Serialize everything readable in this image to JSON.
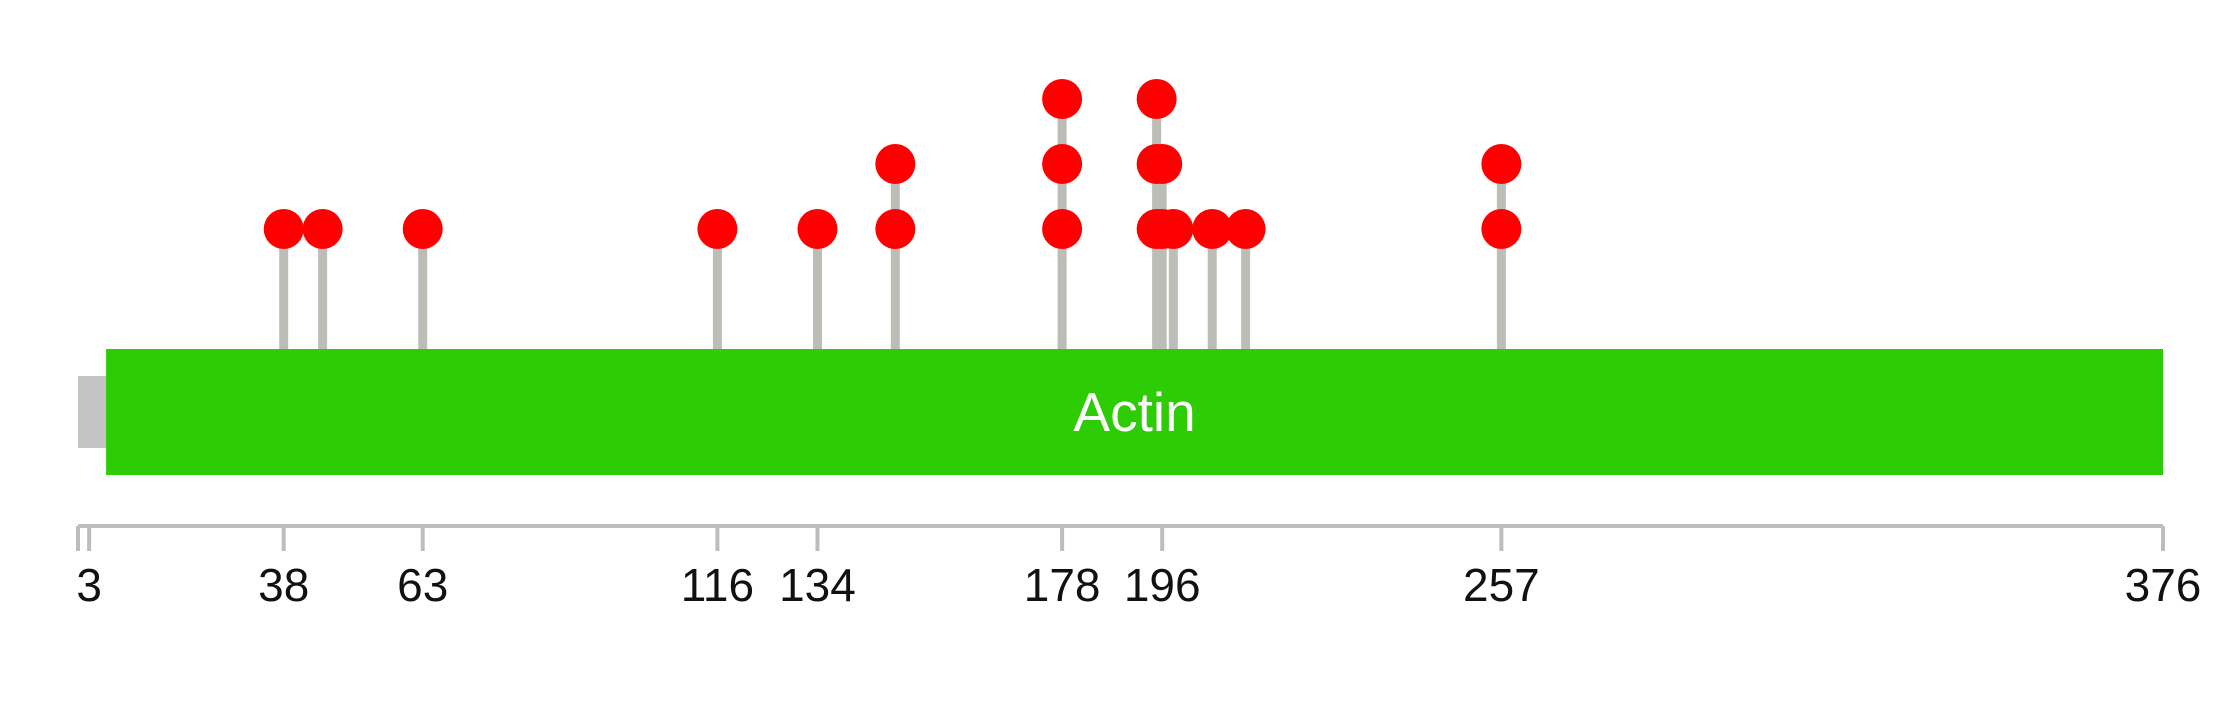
{
  "chart_data": {
    "type": "lollipop",
    "title": "",
    "protein_range": [
      1,
      376
    ],
    "domain": {
      "name": "Actin",
      "start": 3,
      "end": 376,
      "color": "#2ecc05"
    },
    "axis_ticks": [
      3,
      38,
      63,
      116,
      134,
      178,
      196,
      257,
      376
    ],
    "mutations": [
      {
        "position": 38,
        "count": 1
      },
      {
        "position": 45,
        "count": 1
      },
      {
        "position": 63,
        "count": 1
      },
      {
        "position": 116,
        "count": 1
      },
      {
        "position": 134,
        "count": 1
      },
      {
        "position": 148,
        "count": 2
      },
      {
        "position": 178,
        "count": 3
      },
      {
        "position": 195,
        "count": 3
      },
      {
        "position": 196,
        "count": 2
      },
      {
        "position": 198,
        "count": 1
      },
      {
        "position": 205,
        "count": 1
      },
      {
        "position": 211,
        "count": 1
      },
      {
        "position": 257,
        "count": 2
      }
    ],
    "colors": {
      "marker": "#ff0000",
      "stem": "#bdbdb7",
      "axis": "#bdbdbd",
      "backbone": "#c4c4c4",
      "domain_text": "#ffffff",
      "tick_text": "#111111"
    }
  }
}
